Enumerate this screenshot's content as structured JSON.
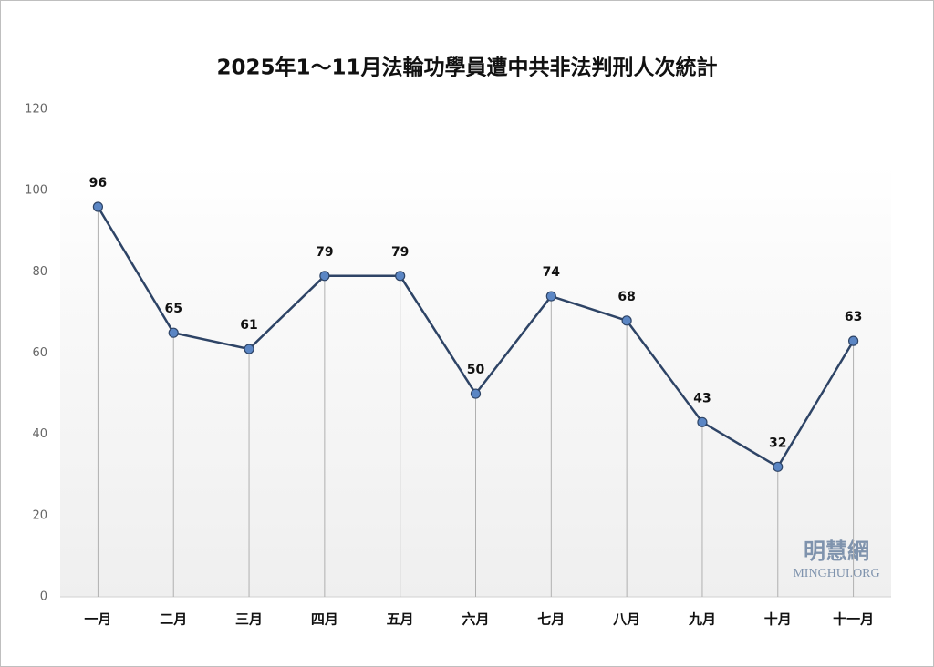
{
  "chart_data": {
    "type": "line",
    "title": "2025年1～11月法輪功學員遭中共非法判刑人次統計",
    "categories": [
      "一月",
      "二月",
      "三月",
      "四月",
      "五月",
      "六月",
      "七月",
      "八月",
      "九月",
      "十月",
      "十一月"
    ],
    "values": [
      96,
      65,
      61,
      79,
      79,
      50,
      74,
      68,
      43,
      32,
      63
    ],
    "color": "#2e4466",
    "marker_color": "#5b86c4",
    "ylim": [
      0,
      120
    ],
    "yticks": [
      0,
      20,
      40,
      60,
      80,
      100,
      120
    ],
    "grid": false,
    "watermark": {
      "name": "明慧網",
      "site": "MINGHUI.ORG"
    }
  }
}
